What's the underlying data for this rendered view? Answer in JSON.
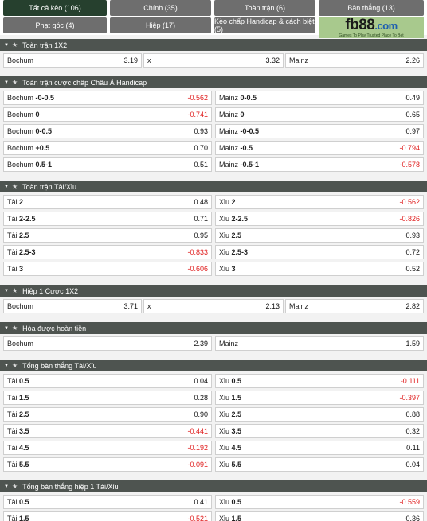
{
  "tabs": [
    {
      "label": "Tất cả kèo (106)",
      "active": true
    },
    {
      "label": "Chính (35)",
      "active": false
    },
    {
      "label": "Toàn trận (6)",
      "active": false
    },
    {
      "label": "Bàn thắng (13)",
      "active": false
    },
    {
      "label": "Phạt góc (4)",
      "active": false
    },
    {
      "label": "Hiệp (17)",
      "active": false
    },
    {
      "label": "Kèo chấp Handicap & cách biệt (5)",
      "active": false
    }
  ],
  "logo": {
    "brand_a": "fb",
    "brand_b": "88",
    "brand_c": ".com",
    "tagline": "Games To Play  Trusted Place To Bet"
  },
  "sections": {
    "s1": {
      "title": "Toàn trận 1X2",
      "rows": [
        [
          {
            "team": "Bochum",
            "line": "",
            "value": "3.19"
          },
          {
            "team": "x",
            "line": "",
            "value": "3.32"
          },
          {
            "team": "Mainz",
            "line": "",
            "value": "2.26"
          }
        ]
      ]
    },
    "s2": {
      "title": "Toàn trận cược chấp Châu Á Handicap",
      "rows": [
        [
          {
            "team": "Bochum",
            "line": "-0-0.5",
            "value": "-0.562"
          },
          {
            "team": "Mainz",
            "line": "0-0.5",
            "value": "0.49"
          }
        ],
        [
          {
            "team": "Bochum",
            "line": "0",
            "value": "-0.741"
          },
          {
            "team": "Mainz",
            "line": "0",
            "value": "0.65"
          }
        ],
        [
          {
            "team": "Bochum",
            "line": "0-0.5",
            "value": "0.93"
          },
          {
            "team": "Mainz",
            "line": "-0-0.5",
            "value": "0.97"
          }
        ],
        [
          {
            "team": "Bochum",
            "line": "+0.5",
            "value": "0.70"
          },
          {
            "team": "Mainz",
            "line": "-0.5",
            "value": "-0.794"
          }
        ],
        [
          {
            "team": "Bochum",
            "line": "0.5-1",
            "value": "0.51"
          },
          {
            "team": "Mainz",
            "line": "-0.5-1",
            "value": "-0.578"
          }
        ]
      ]
    },
    "s3": {
      "title": "Toàn trận Tài/Xỉu",
      "rows": [
        [
          {
            "team": "Tài",
            "line": "2",
            "value": "0.48"
          },
          {
            "team": "Xỉu",
            "line": "2",
            "value": "-0.562"
          }
        ],
        [
          {
            "team": "Tài",
            "line": "2-2.5",
            "value": "0.71"
          },
          {
            "team": "Xỉu",
            "line": "2-2.5",
            "value": "-0.826"
          }
        ],
        [
          {
            "team": "Tài",
            "line": "2.5",
            "value": "0.95"
          },
          {
            "team": "Xỉu",
            "line": "2.5",
            "value": "0.93"
          }
        ],
        [
          {
            "team": "Tài",
            "line": "2.5-3",
            "value": "-0.833"
          },
          {
            "team": "Xỉu",
            "line": "2.5-3",
            "value": "0.72"
          }
        ],
        [
          {
            "team": "Tài",
            "line": "3",
            "value": "-0.606"
          },
          {
            "team": "Xỉu",
            "line": "3",
            "value": "0.52"
          }
        ]
      ]
    },
    "s4": {
      "title": "Hiệp 1 Cược 1X2",
      "rows": [
        [
          {
            "team": "Bochum",
            "line": "",
            "value": "3.71"
          },
          {
            "team": "x",
            "line": "",
            "value": "2.13"
          },
          {
            "team": "Mainz",
            "line": "",
            "value": "2.82"
          }
        ]
      ]
    },
    "s5": {
      "title": "Hòa được hoàn tiền",
      "rows": [
        [
          {
            "team": "Bochum",
            "line": "",
            "value": "2.39"
          },
          {
            "team": "Mainz",
            "line": "",
            "value": "1.59"
          }
        ]
      ]
    },
    "s6": {
      "title": "Tổng bàn thắng Tài/Xỉu",
      "rows": [
        [
          {
            "team": "Tài",
            "line": "0.5",
            "value": "0.04"
          },
          {
            "team": "Xỉu",
            "line": "0.5",
            "value": "-0.111"
          }
        ],
        [
          {
            "team": "Tài",
            "line": "1.5",
            "value": "0.28"
          },
          {
            "team": "Xỉu",
            "line": "1.5",
            "value": "-0.397"
          }
        ],
        [
          {
            "team": "Tài",
            "line": "2.5",
            "value": "0.90"
          },
          {
            "team": "Xỉu",
            "line": "2.5",
            "value": "0.88"
          }
        ],
        [
          {
            "team": "Tài",
            "line": "3.5",
            "value": "-0.441"
          },
          {
            "team": "Xỉu",
            "line": "3.5",
            "value": "0.32"
          }
        ],
        [
          {
            "team": "Tài",
            "line": "4.5",
            "value": "-0.192"
          },
          {
            "team": "Xỉu",
            "line": "4.5",
            "value": "0.11"
          }
        ],
        [
          {
            "team": "Tài",
            "line": "5.5",
            "value": "-0.091"
          },
          {
            "team": "Xỉu",
            "line": "5.5",
            "value": "0.04"
          }
        ]
      ]
    },
    "s7": {
      "title": "Tổng bàn thắng hiệp 1 Tài/Xỉu",
      "rows": [
        [
          {
            "team": "Tài",
            "line": "0.5",
            "value": "0.41"
          },
          {
            "team": "Xỉu",
            "line": "0.5",
            "value": "-0.559"
          }
        ],
        [
          {
            "team": "Tài",
            "line": "1.5",
            "value": "-0.521"
          },
          {
            "team": "Xỉu",
            "line": "1.5",
            "value": "0.36"
          }
        ]
      ]
    }
  }
}
